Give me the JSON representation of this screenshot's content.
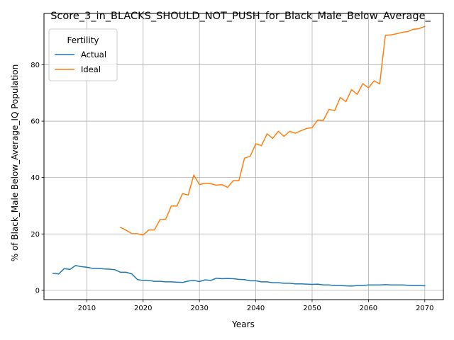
{
  "chart_data": {
    "type": "line",
    "title": "Score_3_in_BLACKS_SHOULD_NOT_PUSH_for_Black_Male_Below_Average_",
    "xlabel": "Years",
    "ylabel": "% of Black_Male Below_Average_IQ Population",
    "xlim": [
      2002.4,
      2073.3
    ],
    "ylim": [
      -3.3,
      98.2
    ],
    "x_ticks": [
      2010,
      2020,
      2030,
      2040,
      2050,
      2060,
      2070
    ],
    "y_ticks": [
      0,
      20,
      40,
      60,
      80
    ],
    "grid": true,
    "legend": {
      "title": "Fertility",
      "placement": "top-left"
    },
    "series": [
      {
        "name": "Actual",
        "color": "#1f77b4",
        "x": [
          2004,
          2005,
          2006,
          2007,
          2008,
          2009,
          2010,
          2011,
          2012,
          2013,
          2014,
          2015,
          2016,
          2017,
          2018,
          2019,
          2020,
          2021,
          2022,
          2023,
          2024,
          2025,
          2026,
          2027,
          2028,
          2029,
          2030,
          2031,
          2032,
          2033,
          2034,
          2035,
          2036,
          2037,
          2038,
          2039,
          2040,
          2041,
          2042,
          2043,
          2044,
          2045,
          2046,
          2047,
          2048,
          2049,
          2050,
          2051,
          2052,
          2053,
          2054,
          2055,
          2056,
          2057,
          2058,
          2059,
          2060,
          2061,
          2062,
          2063,
          2064,
          2065,
          2066,
          2067,
          2068,
          2069,
          2070
        ],
        "y": [
          6.0,
          5.8,
          7.7,
          7.4,
          8.8,
          8.4,
          8.2,
          7.8,
          7.8,
          7.6,
          7.5,
          7.3,
          6.4,
          6.4,
          5.8,
          3.8,
          3.5,
          3.5,
          3.2,
          3.2,
          3.0,
          3.0,
          2.9,
          2.8,
          3.3,
          3.5,
          3.1,
          3.7,
          3.5,
          4.3,
          4.1,
          4.2,
          4.1,
          3.9,
          3.8,
          3.4,
          3.4,
          3.0,
          3.0,
          2.7,
          2.7,
          2.5,
          2.5,
          2.3,
          2.3,
          2.2,
          2.1,
          2.2,
          1.9,
          1.9,
          1.7,
          1.7,
          1.6,
          1.5,
          1.7,
          1.7,
          1.9,
          1.9,
          1.9,
          2.0,
          1.9,
          1.9,
          1.9,
          1.8,
          1.7,
          1.7,
          1.6
        ]
      },
      {
        "name": "Ideal",
        "color": "#ff7f0e",
        "x": [
          2016,
          2017,
          2018,
          2019,
          2020,
          2021,
          2022,
          2023,
          2024,
          2025,
          2026,
          2027,
          2028,
          2029,
          2030,
          2031,
          2032,
          2033,
          2034,
          2035,
          2036,
          2037,
          2038,
          2039,
          2040,
          2041,
          2042,
          2043,
          2044,
          2045,
          2046,
          2047,
          2048,
          2049,
          2050,
          2051,
          2052,
          2053,
          2054,
          2055,
          2056,
          2057,
          2058,
          2059,
          2060,
          2061,
          2062,
          2063,
          2064,
          2065,
          2066,
          2067,
          2068,
          2069,
          2070
        ],
        "y": [
          22.3,
          21.3,
          20.1,
          20.1,
          19.6,
          21.4,
          21.4,
          25.1,
          25.2,
          29.9,
          29.9,
          34.3,
          33.8,
          40.9,
          37.5,
          38.0,
          37.8,
          37.3,
          37.5,
          36.5,
          38.9,
          38.9,
          46.9,
          47.5,
          52.0,
          51.3,
          55.5,
          53.9,
          56.4,
          54.6,
          56.4,
          55.7,
          56.6,
          57.4,
          57.7,
          60.4,
          60.3,
          64.2,
          63.7,
          68.4,
          66.9,
          71.2,
          69.5,
          73.3,
          71.8,
          74.3,
          73.2,
          90.4,
          90.6,
          91.0,
          91.5,
          91.8,
          92.6,
          92.8,
          93.6
        ]
      }
    ]
  }
}
